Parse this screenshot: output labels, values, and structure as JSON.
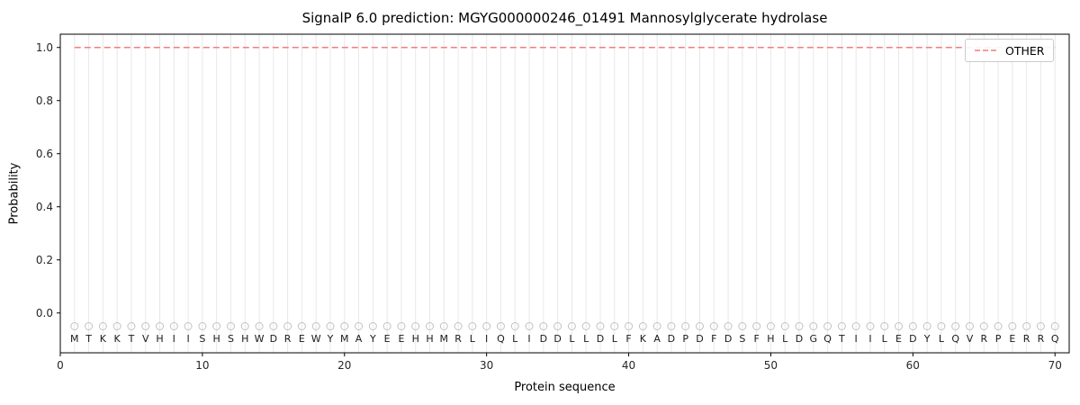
{
  "chart_data": {
    "type": "line",
    "title": "SignalP 6.0 prediction: MGYG000000246_01491 Mannosylglycerate hydrolase",
    "xlabel": "Protein sequence",
    "ylabel": "Probability",
    "xlim": [
      0,
      71
    ],
    "ylim": [
      -0.15,
      1.05
    ],
    "x_ticks": [
      0,
      10,
      20,
      30,
      40,
      50,
      60,
      70
    ],
    "y_ticks": [
      0.0,
      0.2,
      0.4,
      0.6,
      0.8,
      1.0
    ],
    "grid": "vertical-per-residue",
    "grid_color": "#e8e8e8",
    "spine_color": "#000000",
    "legend": {
      "position": "upper right",
      "entries": [
        {
          "label": "OTHER",
          "style": "dashed",
          "color": "#f47c7c"
        }
      ]
    },
    "series": [
      {
        "name": "OTHER",
        "style": "dashed",
        "color": "#f47c7c",
        "x_range": [
          1,
          70
        ],
        "constant_value": 1.0
      }
    ],
    "sequence": "MTKKTVHIISHSHWDREWYMAYEEHHMRLIQLIDDLLDLFKADPDFDSFHLDGQTIILEDYLQVRPERRQ",
    "sequence_length": 70,
    "marker": {
      "shape": "circle",
      "y": -0.05,
      "color": "#c2c2c2"
    },
    "letters_y": -0.11,
    "letter_color": "#1a1a1a",
    "tick_label_color": "#262626"
  }
}
